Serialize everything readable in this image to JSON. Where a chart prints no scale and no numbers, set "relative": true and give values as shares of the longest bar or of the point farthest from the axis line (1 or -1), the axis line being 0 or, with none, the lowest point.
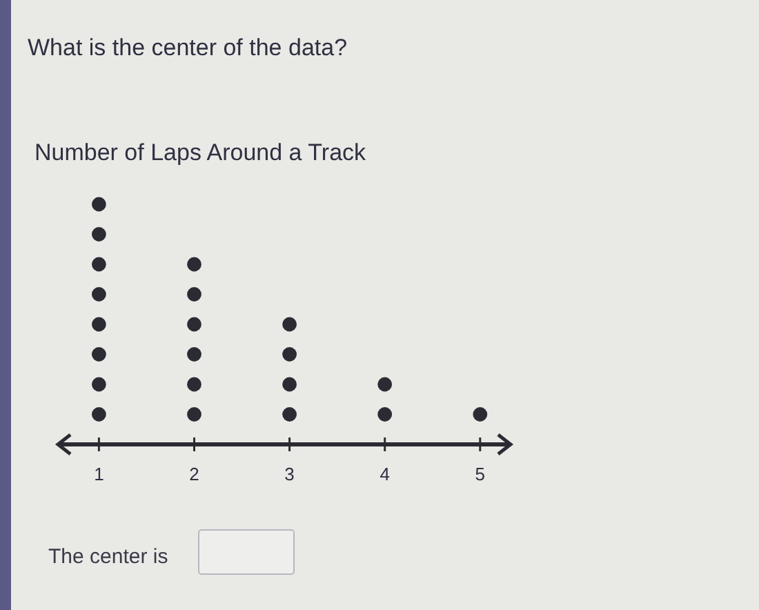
{
  "chart_data": {
    "type": "scatter",
    "title": "Number of Laps Around a Track",
    "annotations": [
      "What is the center of the data?",
      "The center is"
    ],
    "series": [
      {
        "color": "#2b2b33",
        "x": [
          1,
          1,
          1,
          1,
          1,
          1,
          1,
          1,
          2,
          2,
          2,
          2,
          2,
          2,
          3,
          3,
          3,
          3,
          4,
          4,
          5
        ],
        "values": [
          0.125,
          0.25,
          0.375,
          0.5,
          0.625,
          0.75,
          0.875,
          1,
          0.125,
          0.25,
          0.375,
          0.5,
          0.625,
          0.75,
          0.125,
          0.25,
          0.375,
          0.5,
          0.125,
          0.25,
          0.125
        ]
      }
    ],
    "relative": true,
    "xlim": [
      0.57,
      5.32
    ],
    "xticks": [
      1,
      2,
      3,
      4,
      5
    ],
    "tick_labels": "x",
    "marker": "circle"
  }
}
